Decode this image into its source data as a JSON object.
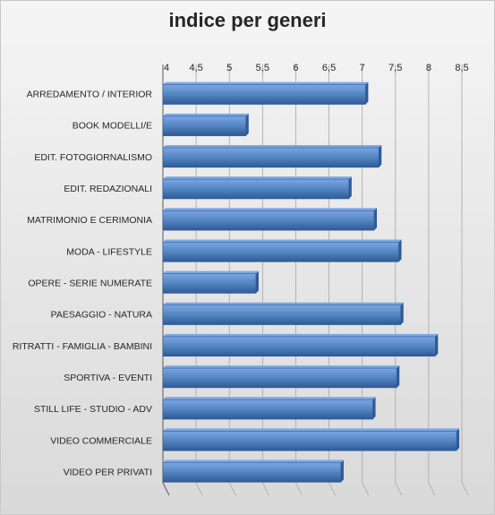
{
  "chart_data": {
    "type": "bar",
    "orientation": "horizontal",
    "title": "indice per generi",
    "categories": [
      "ARREDAMENTO / INTERIOR",
      "BOOK MODELLI/E",
      "EDIT. FOTOGIORNALISMO",
      "EDIT. REDAZIONALI",
      "MATRIMONIO E CERIMONIA",
      "MODA - LIFESTYLE",
      "OPERE - SERIE NUMERATE",
      "PAESAGGIO - NATURA",
      "RITRATTI - FAMIGLIA - BAMBINI",
      "SPORTIVA - EVENTI",
      "STILL LIFE - STUDIO - ADV",
      "VIDEO COMMERCIALE",
      "VIDEO PER PRIVATI"
    ],
    "values": [
      7.05,
      5.25,
      7.25,
      6.8,
      7.18,
      7.55,
      5.4,
      7.58,
      8.1,
      7.52,
      7.16,
      8.42,
      6.68
    ],
    "x_ticks": [
      "4",
      "4,5",
      "5",
      "5,5",
      "6",
      "6,5",
      "7",
      "7,5",
      "8",
      "8,5"
    ],
    "xlim": [
      4,
      8.5
    ],
    "xlabel": "",
    "ylabel": "",
    "grid": true,
    "legend": "none",
    "colors": {
      "bar": "#4f81bd",
      "bar_light": "#7aa7e3",
      "bar_dark": "#2f5a96",
      "grid": "#a6a6a6",
      "text": "#262626"
    }
  }
}
